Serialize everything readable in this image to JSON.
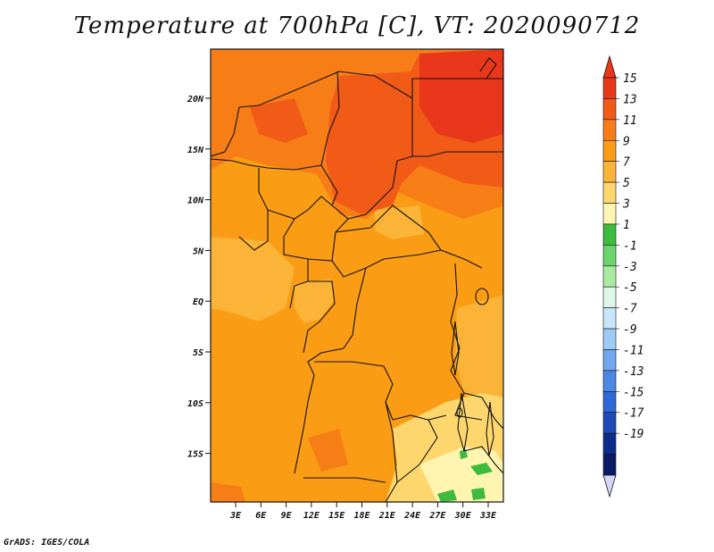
{
  "title": "Temperature at 700hPa [C], VT: 2020090712",
  "credit": "GrADS: IGES/COLA",
  "map": {
    "lat_ticks": [
      "20N",
      "15N",
      "10N",
      "5N",
      "EQ",
      "5S",
      "10S",
      "15S"
    ],
    "lon_ticks": [
      "3E",
      "6E",
      "9E",
      "12E",
      "15E",
      "18E",
      "21E",
      "24E",
      "27E",
      "30E",
      "33E"
    ],
    "colors": {
      "warmest": "#e8371b",
      "very_warm": "#f25a18",
      "warm": "#f77e17",
      "mild_warm": "#fa9c14",
      "mild": "#fbb437",
      "cool": "#fdd76e",
      "cooler": "#fff5b0",
      "green": "#3cbb3c"
    }
  },
  "colorbar": {
    "labels": [
      "15",
      "13",
      "11",
      "9",
      "7",
      "5",
      "3",
      "1",
      "-1",
      "-3",
      "-5",
      "-7",
      "-9",
      "-11",
      "-13",
      "-15",
      "-17",
      "-19"
    ],
    "colors": [
      "#e8371b",
      "#f25a18",
      "#f77e17",
      "#fa9c14",
      "#fbb437",
      "#fdd76e",
      "#fff5b0",
      "#3cbb3c",
      "#6ad56a",
      "#a8eaa0",
      "#def7e8",
      "#c6e6fb",
      "#9dcbf5",
      "#6fa8ec",
      "#4a88e3",
      "#2e68d6",
      "#1e4bb8",
      "#0e2c8a",
      "#0a1a66"
    ],
    "arrow_top_color": "#e8371b",
    "arrow_bottom_color": "#d6d6f5"
  }
}
